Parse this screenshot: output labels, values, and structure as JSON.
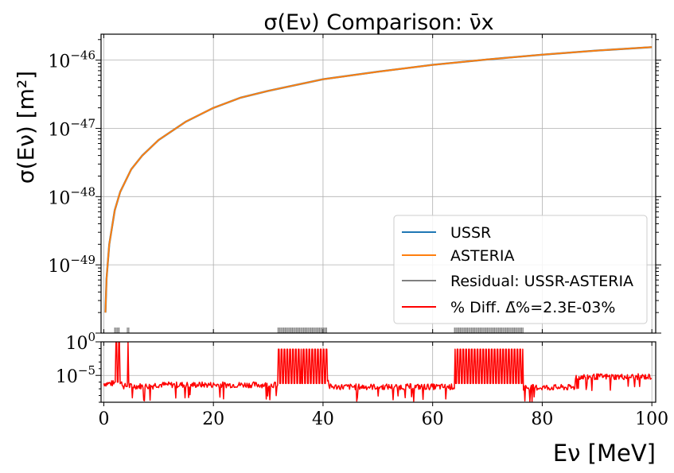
{
  "chart_data": [
    {
      "type": "line",
      "title": "σ(Eν) Comparison: ν̄x",
      "xlabel": "",
      "ylabel": "σ(Eν) [m²]",
      "yscale": "log",
      "xlim": [
        -0.5,
        100.7
      ],
      "ylim_exp": [
        -50.0,
        -45.62
      ],
      "y_ticks": [
        {
          "exp": -46,
          "base": "10",
          "power": "−46"
        },
        {
          "exp": -47,
          "base": "10",
          "power": "−47"
        },
        {
          "exp": -48,
          "base": "10",
          "power": "−48"
        },
        {
          "exp": -49,
          "base": "10",
          "power": "−49"
        }
      ],
      "grid": true,
      "legend_position": "lower-right",
      "series": [
        {
          "name": "USSR",
          "color": "#1f77b4",
          "x": [
            0.3,
            0.5,
            1,
            2,
            3,
            5,
            7,
            10,
            15,
            20,
            25,
            30,
            40,
            50,
            60,
            70,
            80,
            90,
            100
          ],
          "y_exp": [
            -49.7,
            -49.2,
            -48.7,
            -48.2,
            -47.93,
            -47.6,
            -47.4,
            -47.17,
            -46.9,
            -46.7,
            -46.55,
            -46.45,
            -46.28,
            -46.17,
            -46.07,
            -45.99,
            -45.92,
            -45.86,
            -45.81
          ]
        },
        {
          "name": "ASTERIA",
          "color": "#ff7f0e",
          "x": [
            0.3,
            0.5,
            1,
            2,
            3,
            5,
            7,
            10,
            15,
            20,
            25,
            30,
            40,
            50,
            60,
            70,
            80,
            90,
            100
          ],
          "y_exp": [
            -49.7,
            -49.2,
            -48.7,
            -48.2,
            -47.93,
            -47.6,
            -47.4,
            -47.17,
            -46.9,
            -46.7,
            -46.55,
            -46.45,
            -46.28,
            -46.17,
            -46.07,
            -45.99,
            -45.92,
            -45.86,
            -45.81
          ]
        },
        {
          "name": "Residual: USSR-ASTERIA",
          "color": "#808080",
          "spike_ranges": [
            [
              2.0,
              2.9
            ],
            [
              4.3,
              4.6
            ],
            [
              31.8,
              40.8
            ],
            [
              64.0,
              76.5
            ]
          ]
        },
        {
          "name": "% Diff. Δ̄%=2.3E-03%",
          "color": "#ff0000",
          "baseline_exp": -5.6,
          "segments": [
            {
              "x": [
                0,
                3.5
              ],
              "y_exp": -6.2
            },
            {
              "x": [
                3.5,
                9
              ],
              "y_exp": -6.6
            },
            {
              "x": [
                9,
                32
              ],
              "y_exp": -6.4
            },
            {
              "x": [
                41,
                64
              ],
              "y_exp": -6.7
            },
            {
              "x": [
                76.5,
                86
              ],
              "y_exp": -6.8
            },
            {
              "x": [
                86,
                100
              ],
              "y_exp": -5.2
            }
          ],
          "spike_ranges": [
            [
              2.0,
              2.9
            ],
            [
              4.3,
              4.6
            ],
            [
              31.8,
              40.8
            ],
            [
              64.0,
              76.5
            ]
          ]
        }
      ]
    },
    {
      "type": "line",
      "title": "",
      "xlabel": "Eν [MeV]",
      "ylabel": "",
      "yscale": "log",
      "xlim": [
        -0.5,
        100.7
      ],
      "ylim_exp": [
        -9.0,
        0.0
      ],
      "x_ticks": [
        "0",
        "20",
        "40",
        "60",
        "80",
        "100"
      ],
      "y_ticks": [
        {
          "exp": 0,
          "base": "10",
          "power": "0"
        },
        {
          "exp": -5,
          "base": "10",
          "power": "−5"
        }
      ],
      "grid": true
    }
  ]
}
